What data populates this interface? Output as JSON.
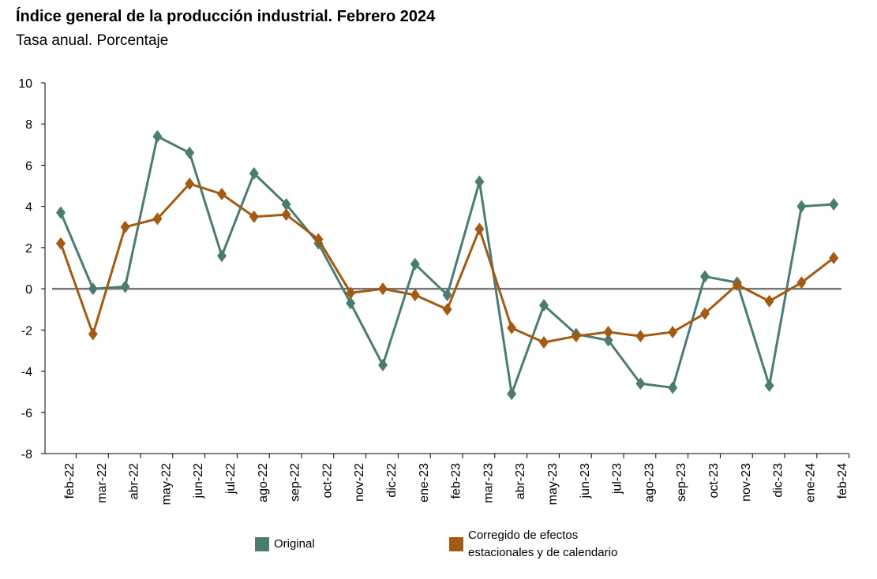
{
  "title": "Índice general de la producción industrial. Febrero 2024",
  "subtitle": "Tasa anual. Porcentaje",
  "chart_data": {
    "type": "line",
    "categories": [
      "feb-22",
      "mar-22",
      "abr-22",
      "may-22",
      "jun-22",
      "jul-22",
      "ago-22",
      "sep-22",
      "oct-22",
      "nov-22",
      "dic-22",
      "ene-23",
      "feb-23",
      "mar-23",
      "abr-23",
      "may-23",
      "jun-23",
      "jul-23",
      "ago-23",
      "sep-23",
      "oct-23",
      "nov-23",
      "dic-23",
      "ene-24",
      "feb-24"
    ],
    "ylim": [
      -8,
      10
    ],
    "yticks": [
      10,
      8,
      6,
      4,
      2,
      0,
      -2,
      -4,
      -6,
      -8
    ],
    "series": [
      {
        "name": "Original",
        "color": "#4a7c72",
        "values": [
          3.7,
          0.0,
          0.1,
          7.4,
          6.6,
          1.6,
          5.6,
          4.1,
          2.2,
          -0.7,
          -3.7,
          1.2,
          -0.3,
          5.2,
          -5.1,
          -0.8,
          -2.2,
          -2.5,
          -4.6,
          -4.8,
          0.6,
          0.3,
          -4.7,
          4.0,
          4.1
        ]
      },
      {
        "name": "Corregido de efectos\nestacionales y de calendario",
        "color": "#a35a12",
        "values": [
          2.2,
          -2.2,
          3.0,
          3.4,
          5.1,
          4.6,
          3.5,
          3.6,
          2.4,
          -0.2,
          0.0,
          -0.3,
          -1.0,
          2.9,
          -1.9,
          -2.6,
          -2.3,
          -2.1,
          -2.3,
          -2.1,
          -1.2,
          0.2,
          -0.6,
          0.3,
          1.5
        ]
      }
    ],
    "legend_position": "bottom",
    "grid": false
  }
}
